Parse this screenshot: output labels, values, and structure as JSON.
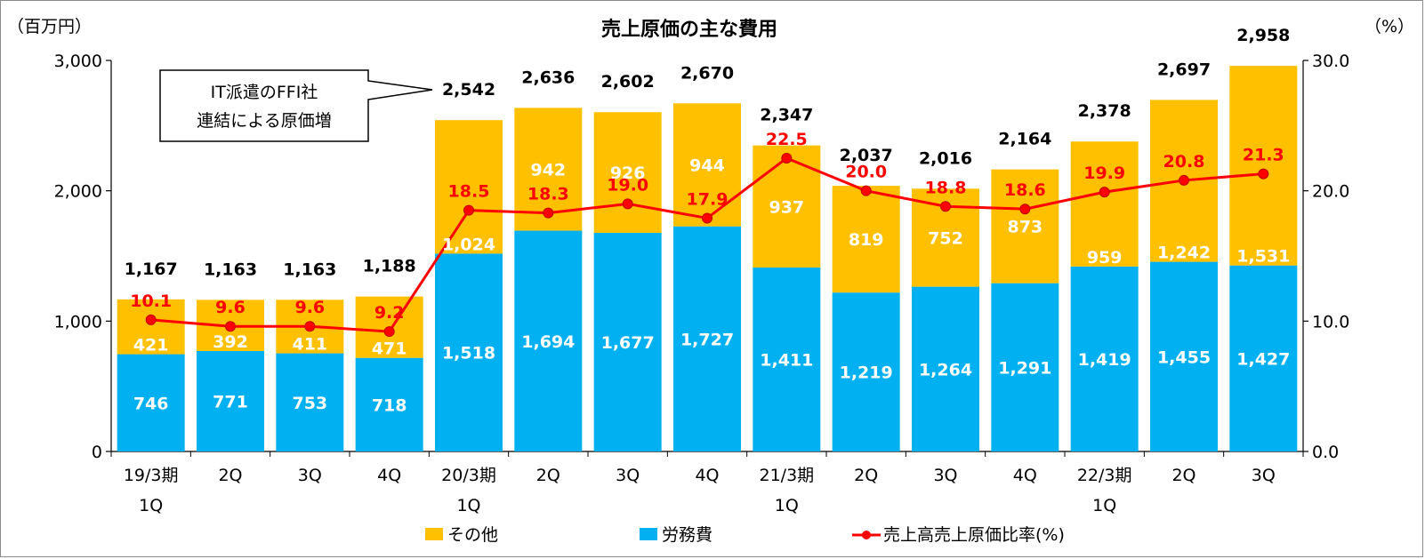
{
  "chart_data": {
    "type": "bar",
    "stacked": true,
    "title": "売上原価の主な費用",
    "y_left_unit": "（百万円）",
    "y_right_unit": "（%）",
    "y_left_ticks": [
      "0",
      "1,000",
      "2,000",
      "3,000"
    ],
    "y_right_ticks": [
      "0.0",
      "10.0",
      "20.0",
      "30.0"
    ],
    "ylim": [
      0,
      3000
    ],
    "y2lim": [
      0,
      30
    ],
    "grid": false,
    "legend_position": "bottom",
    "categories": [
      {
        "line1": "19/3期",
        "line2": "1Q"
      },
      {
        "line1": "2Q",
        "line2": ""
      },
      {
        "line1": "3Q",
        "line2": ""
      },
      {
        "line1": "4Q",
        "line2": ""
      },
      {
        "line1": "20/3期",
        "line2": "1Q"
      },
      {
        "line1": "2Q",
        "line2": ""
      },
      {
        "line1": "3Q",
        "line2": ""
      },
      {
        "line1": "4Q",
        "line2": ""
      },
      {
        "line1": "21/3期",
        "line2": "1Q"
      },
      {
        "line1": "2Q",
        "line2": ""
      },
      {
        "line1": "3Q",
        "line2": ""
      },
      {
        "line1": "4Q",
        "line2": ""
      },
      {
        "line1": "22/3期",
        "line2": "1Q"
      },
      {
        "line1": "2Q",
        "line2": ""
      },
      {
        "line1": "3Q",
        "line2": ""
      }
    ],
    "series": [
      {
        "name": "労務費",
        "color": "#00B0F0",
        "axis": "left",
        "values": [
          746,
          771,
          753,
          718,
          1518,
          1694,
          1677,
          1727,
          1411,
          1219,
          1264,
          1291,
          1419,
          1455,
          1427
        ],
        "labels": [
          "746",
          "771",
          "753",
          "718",
          "1,518",
          "1,694",
          "1,677",
          "1,727",
          "1,411",
          "1,219",
          "1,264",
          "1,291",
          "1,419",
          "1,455",
          "1,427"
        ]
      },
      {
        "name": "その他",
        "color": "#FFC000",
        "axis": "left",
        "values": [
          421,
          392,
          411,
          471,
          1024,
          942,
          926,
          944,
          937,
          819,
          752,
          873,
          959,
          1242,
          1531
        ],
        "labels": [
          "421",
          "392",
          "411",
          "471",
          "1,024",
          "942",
          "926",
          "944",
          "937",
          "819",
          "752",
          "873",
          "959",
          "1,242",
          "1,531"
        ]
      },
      {
        "name": "売上高売上原価比率(%)",
        "type": "line",
        "color": "#FF0000",
        "axis": "right",
        "values": [
          10.1,
          9.6,
          9.6,
          9.2,
          18.5,
          18.3,
          19.0,
          17.9,
          22.5,
          20.0,
          18.8,
          18.6,
          19.9,
          20.8,
          21.3
        ],
        "labels": [
          "10.1",
          "9.6",
          "9.6",
          "9.2",
          "18.5",
          "18.3",
          "19.0",
          "17.9",
          "22.5",
          "20.0",
          "18.8",
          "18.6",
          "19.9",
          "20.8",
          "21.3"
        ]
      }
    ],
    "totals": [
      1167,
      1163,
      1163,
      1188,
      2542,
      2636,
      2602,
      2670,
      2347,
      2037,
      2016,
      2164,
      2378,
      2697,
      2958
    ],
    "total_labels": [
      "1,167",
      "1,163",
      "1,163",
      "1,188",
      "2,542",
      "2,636",
      "2,602",
      "2,670",
      "2,347",
      "2,037",
      "2,016",
      "2,164",
      "2,378",
      "2,697",
      "2,958"
    ],
    "annotation": {
      "lines": [
        "IT派遣のFFI社",
        "連結による原価増"
      ]
    }
  }
}
